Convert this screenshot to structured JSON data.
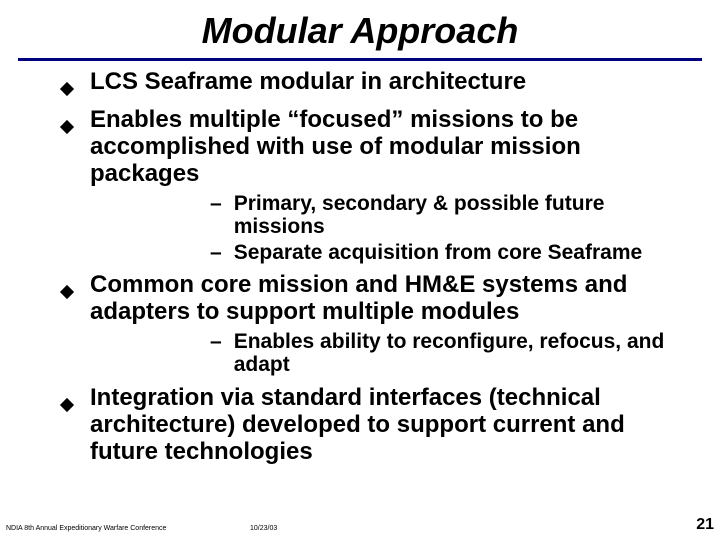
{
  "title": {
    "text": "Modular Approach",
    "fontsize": 36,
    "color": "#000000"
  },
  "rule": {
    "color": "#000080",
    "thickness": 3
  },
  "bullets": {
    "level1_fontsize": 24,
    "level2_fontsize": 21,
    "diamond_color": "#000000",
    "diamond_size": 10,
    "items": [
      {
        "text": "LCS Seaframe modular in architecture",
        "sub": []
      },
      {
        "text": "Enables multiple “focused” missions to be accomplished with use of modular mission packages",
        "sub": [
          "Primary, secondary & possible future missions",
          "Separate acquisition from core Seaframe"
        ]
      },
      {
        "text": "Common core mission and HM&E systems and adapters to support multiple modules",
        "sub": [
          "Enables ability to reconfigure, refocus, and adapt"
        ]
      },
      {
        "text": "Integration via standard interfaces (technical architecture) developed to support current and future technologies",
        "sub": []
      }
    ]
  },
  "footer": {
    "left": "NDIA 8th Annual Expeditionary Warfare Conference",
    "date": "10/23/03",
    "page": "21",
    "left_fontsize": 7,
    "date_fontsize": 7,
    "page_fontsize": 16
  },
  "background_color": "#ffffff"
}
